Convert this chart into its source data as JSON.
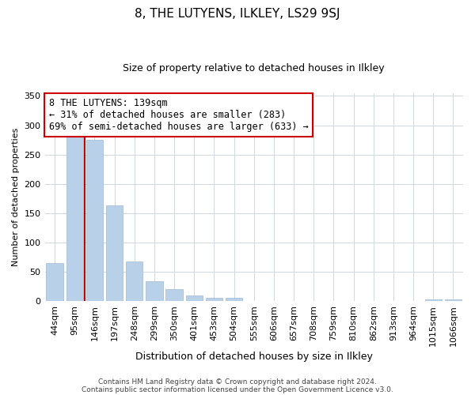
{
  "title": "8, THE LUTYENS, ILKLEY, LS29 9SJ",
  "subtitle": "Size of property relative to detached houses in Ilkley",
  "xlabel": "Distribution of detached houses by size in Ilkley",
  "ylabel": "Number of detached properties",
  "bar_labels": [
    "44sqm",
    "95sqm",
    "146sqm",
    "197sqm",
    "248sqm",
    "299sqm",
    "350sqm",
    "401sqm",
    "453sqm",
    "504sqm",
    "555sqm",
    "606sqm",
    "657sqm",
    "708sqm",
    "759sqm",
    "810sqm",
    "862sqm",
    "913sqm",
    "964sqm",
    "1015sqm",
    "1066sqm"
  ],
  "bar_values": [
    65,
    282,
    275,
    163,
    68,
    34,
    20,
    10,
    5,
    5,
    0,
    0,
    0,
    0,
    0,
    0,
    0,
    0,
    0,
    2,
    2
  ],
  "bar_color": "#b8d0e8",
  "bar_edge_color": "#a0b8d0",
  "marker_color": "#cc0000",
  "annotation_text": "8 THE LUTYENS: 139sqm\n← 31% of detached houses are smaller (283)\n69% of semi-detached houses are larger (633) →",
  "annotation_box_color": "#ffffff",
  "annotation_box_edge": "#cc0000",
  "ylim": [
    0,
    355
  ],
  "yticks": [
    0,
    50,
    100,
    150,
    200,
    250,
    300,
    350
  ],
  "footer1": "Contains HM Land Registry data © Crown copyright and database right 2024.",
  "footer2": "Contains public sector information licensed under the Open Government Licence v3.0.",
  "bg_color": "#ffffff",
  "grid_color": "#d0d8e0",
  "title_fontsize": 11,
  "subtitle_fontsize": 9,
  "xlabel_fontsize": 9,
  "ylabel_fontsize": 8,
  "tick_fontsize": 8,
  "annotation_fontsize": 8.5,
  "footer_fontsize": 6.5
}
